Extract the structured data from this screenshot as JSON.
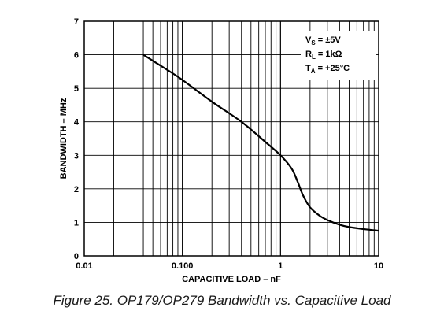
{
  "chart_data": {
    "type": "line",
    "title": "",
    "xlabel": "CAPACITIVE LOAD – nF",
    "ylabel": "BANDWIDTH – MHz",
    "x_scale": "log",
    "xlim": [
      0.01,
      10
    ],
    "ylim": [
      0,
      7
    ],
    "grid": true,
    "x_ticks": [
      {
        "value": 0.01,
        "label": "0.01"
      },
      {
        "value": 0.1,
        "label": "0.100"
      },
      {
        "value": 1,
        "label": "1"
      },
      {
        "value": 10,
        "label": "10"
      }
    ],
    "y_ticks": [
      {
        "value": 0,
        "label": "0"
      },
      {
        "value": 1,
        "label": "1"
      },
      {
        "value": 2,
        "label": "2"
      },
      {
        "value": 3,
        "label": "3"
      },
      {
        "value": 4,
        "label": "4"
      },
      {
        "value": 5,
        "label": "5"
      },
      {
        "value": 6,
        "label": "6"
      },
      {
        "value": 7,
        "label": "7"
      }
    ],
    "series": [
      {
        "x": [
          0.04,
          0.07,
          0.1,
          0.2,
          0.4,
          0.7,
          1.0,
          1.3,
          1.5,
          1.7,
          2.0,
          2.5,
          3.0,
          4.0,
          5.0,
          7.0,
          10.0
        ],
        "y": [
          6.0,
          5.55,
          5.25,
          4.6,
          4.0,
          3.4,
          3.0,
          2.6,
          2.2,
          1.8,
          1.45,
          1.2,
          1.07,
          0.93,
          0.86,
          0.8,
          0.75
        ]
      }
    ],
    "annotations": [
      {
        "main": "V",
        "sub": "S",
        "rest": " = ±5V"
      },
      {
        "main": "R",
        "sub": "L",
        "rest": " = 1kΩ"
      },
      {
        "main": "T",
        "sub": "A",
        "rest": " = +25°C"
      }
    ]
  },
  "caption": "Figure 25.  OP179/OP279 Bandwidth vs. Capacitive Load"
}
